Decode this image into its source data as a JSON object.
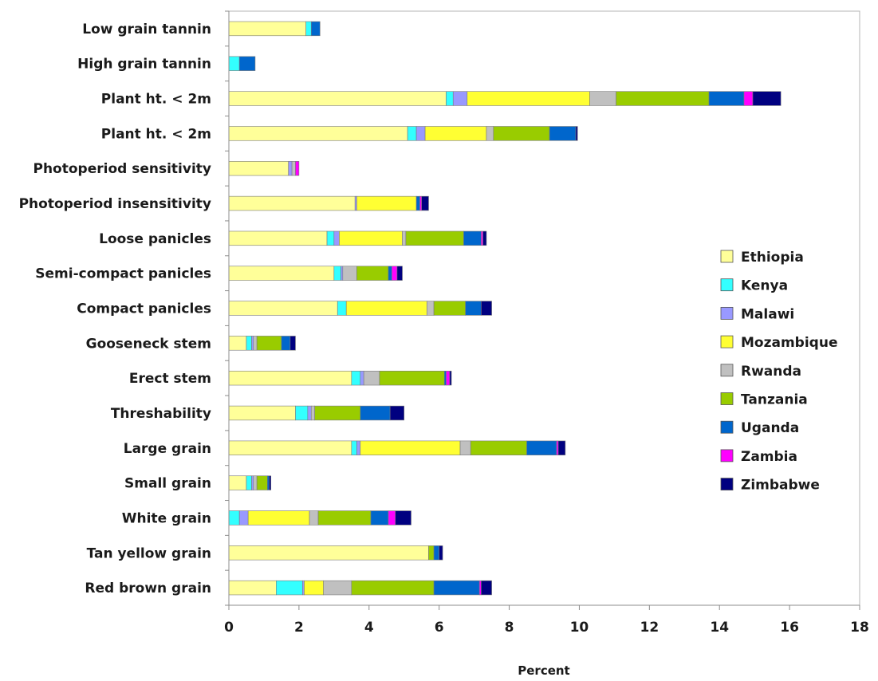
{
  "chart_data": {
    "type": "bar",
    "orientation": "horizontal",
    "stacked": true,
    "title": "",
    "xlabel": "Percent",
    "ylabel": "",
    "xlim": [
      0,
      18
    ],
    "xticks": [
      0,
      2,
      4,
      6,
      8,
      10,
      12,
      14,
      16,
      18
    ],
    "grid": false,
    "legend_position": "right",
    "categories": [
      "Low grain tannin",
      "High grain tannin",
      "Plant ht. < 2m",
      "Plant ht. < 2m",
      "Photoperiod sensitivity",
      "Photoperiod insensitivity",
      "Loose panicles",
      "Semi-compact panicles",
      "Compact panicles",
      "Gooseneck stem",
      "Erect stem",
      "Threshability",
      "Large grain",
      "Small grain",
      "White grain",
      "Tan yellow grain",
      "Red brown grain"
    ],
    "series": [
      {
        "name": "Ethiopia",
        "color": "#FFFF99",
        "values": [
          2.2,
          0.0,
          6.2,
          5.1,
          1.7,
          3.6,
          2.8,
          3.0,
          3.1,
          0.5,
          3.5,
          1.9,
          3.5,
          0.5,
          0.0,
          5.7,
          1.35
        ]
      },
      {
        "name": "Kenya",
        "color": "#33FFFF",
        "values": [
          0.15,
          0.3,
          0.2,
          0.25,
          0.0,
          0.0,
          0.2,
          0.2,
          0.25,
          0.15,
          0.25,
          0.35,
          0.15,
          0.15,
          0.3,
          0.0,
          0.75
        ]
      },
      {
        "name": "Malawi",
        "color": "#9999FF",
        "values": [
          0.0,
          0.0,
          0.4,
          0.25,
          0.1,
          0.05,
          0.15,
          0.05,
          0.0,
          0.05,
          0.1,
          0.1,
          0.1,
          0.05,
          0.25,
          0.0,
          0.05
        ]
      },
      {
        "name": "Mozambique",
        "color": "#FFFF33",
        "values": [
          0.0,
          0.0,
          3.5,
          1.75,
          0.0,
          1.7,
          1.8,
          0.0,
          2.3,
          0.0,
          0.0,
          0.0,
          2.85,
          0.0,
          1.75,
          0.0,
          0.55
        ]
      },
      {
        "name": "Rwanda",
        "color": "#C0C0C0",
        "values": [
          0.0,
          0.0,
          0.75,
          0.2,
          0.1,
          0.0,
          0.1,
          0.4,
          0.2,
          0.1,
          0.45,
          0.1,
          0.3,
          0.1,
          0.25,
          0.0,
          0.8
        ]
      },
      {
        "name": "Tanzania",
        "color": "#99CC00",
        "values": [
          0.0,
          0.0,
          2.65,
          1.6,
          0.0,
          0.0,
          1.65,
          0.9,
          0.9,
          0.7,
          1.85,
          1.3,
          1.6,
          0.3,
          1.5,
          0.15,
          2.35
        ]
      },
      {
        "name": "Uganda",
        "color": "#0066CC",
        "values": [
          0.25,
          0.45,
          1.0,
          0.75,
          0.0,
          0.1,
          0.5,
          0.1,
          0.45,
          0.25,
          0.05,
          0.85,
          0.85,
          0.05,
          0.5,
          0.15,
          1.3
        ]
      },
      {
        "name": "Zambia",
        "color": "#FF00FF",
        "values": [
          0.0,
          0.0,
          0.25,
          0.0,
          0.1,
          0.05,
          0.05,
          0.15,
          0.0,
          0.0,
          0.1,
          0.0,
          0.05,
          0.0,
          0.2,
          0.0,
          0.05
        ]
      },
      {
        "name": "Zimbabwe",
        "color": "#000080",
        "values": [
          0.0,
          0.0,
          0.8,
          0.05,
          0.0,
          0.2,
          0.1,
          0.15,
          0.3,
          0.15,
          0.05,
          0.4,
          0.2,
          0.05,
          0.45,
          0.1,
          0.3
        ]
      }
    ]
  }
}
